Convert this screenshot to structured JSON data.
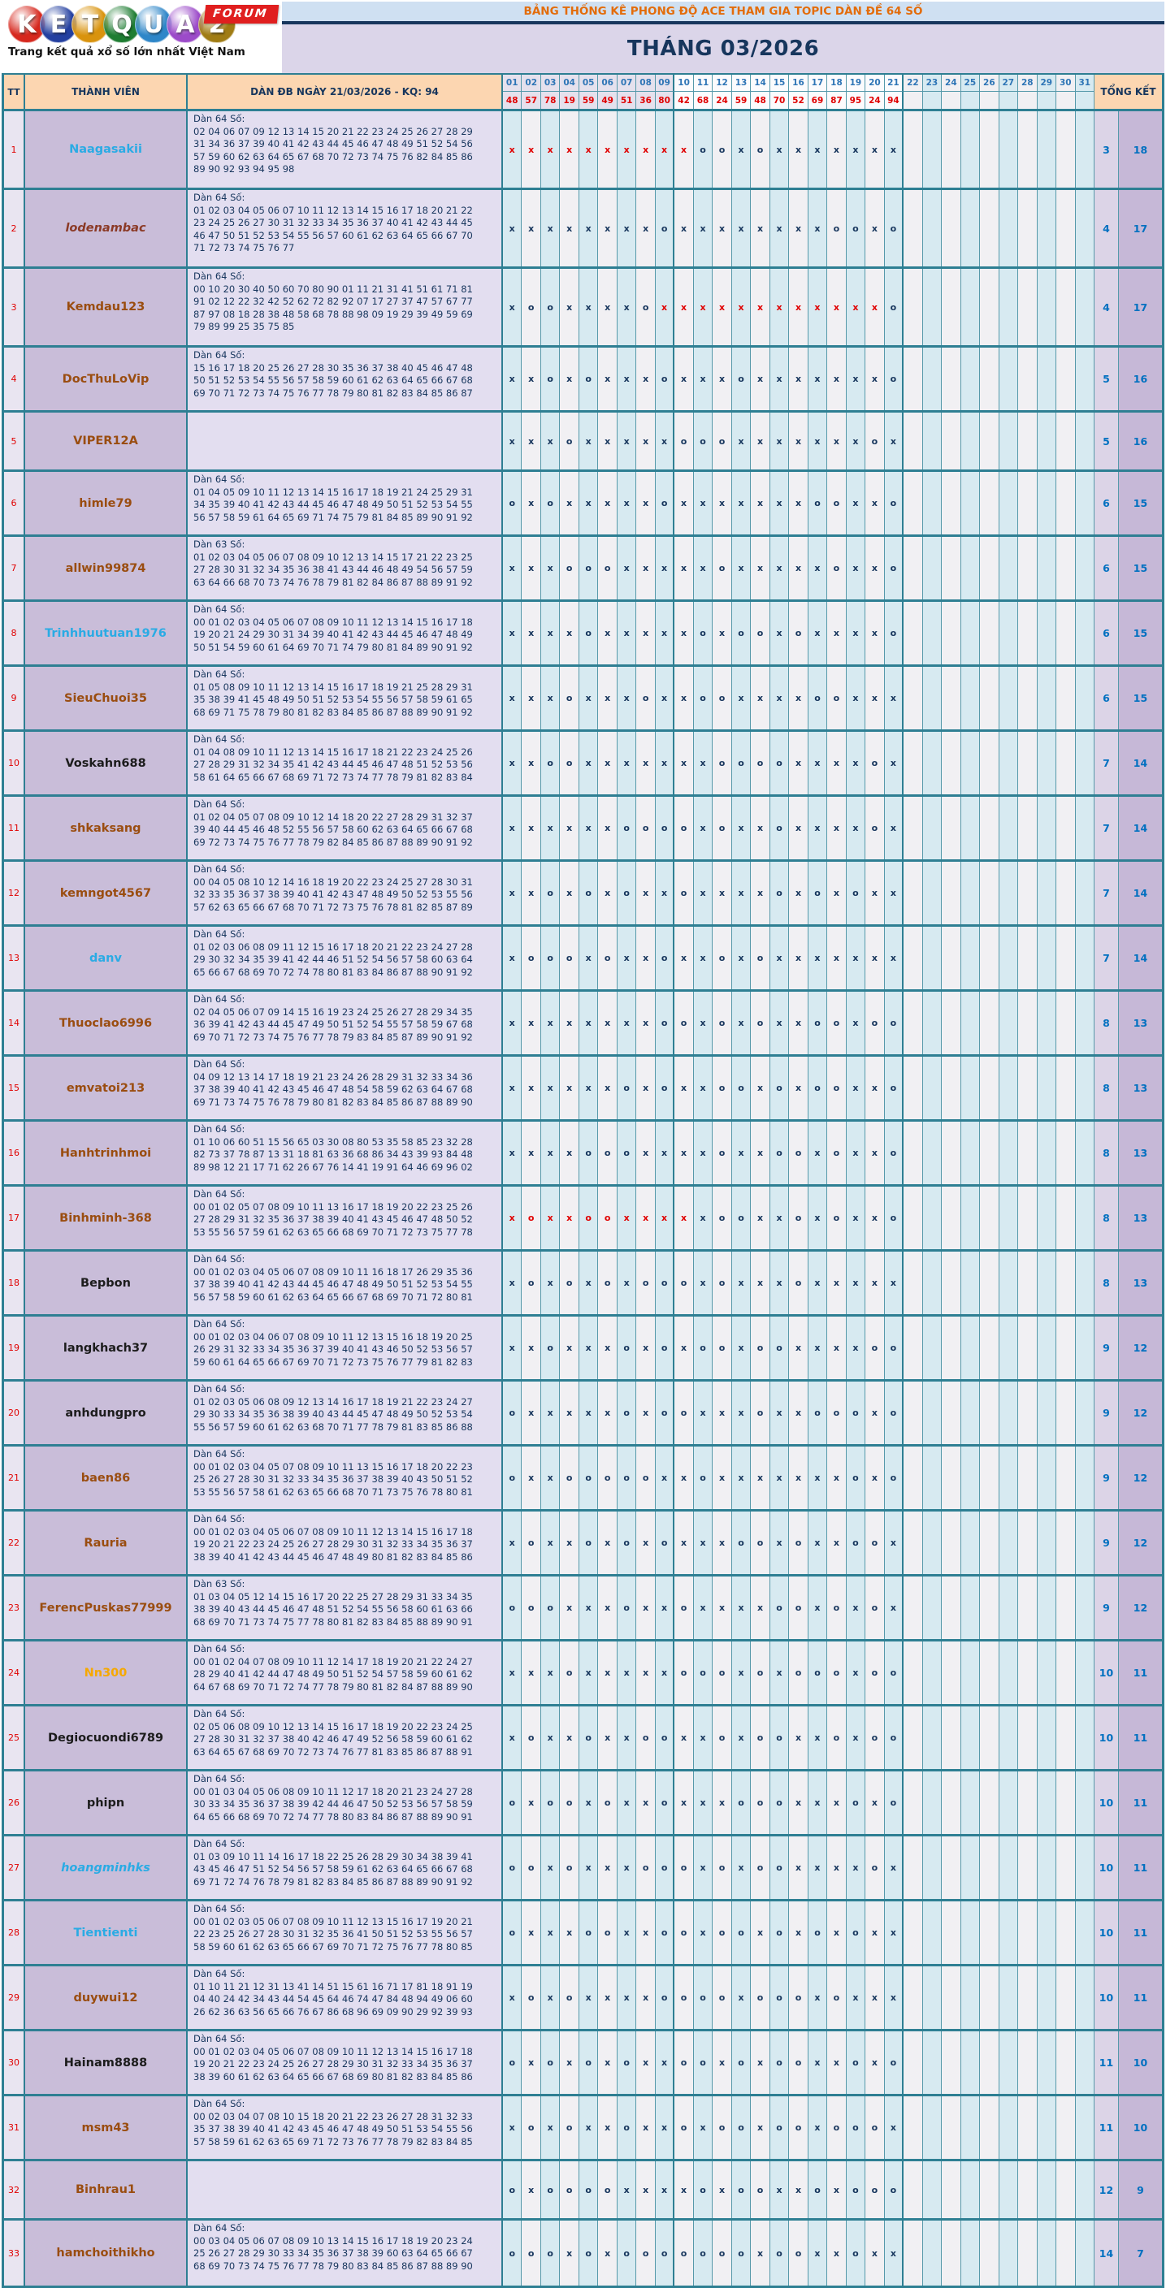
{
  "logo": {
    "letters": [
      {
        "ch": "K",
        "color": "#d6281e"
      },
      {
        "ch": "E",
        "color": "#2440a0"
      },
      {
        "ch": "T",
        "color": "#d9930d"
      },
      {
        "ch": "Q",
        "color": "#1e7d32"
      },
      {
        "ch": "U",
        "color": "#2e86c8"
      },
      {
        "ch": "A",
        "color": "#9c4bc9"
      },
      {
        "ch": "2",
        "color": "#a07c14"
      }
    ],
    "forum_label": "FORUM",
    "tagline": "Trang kết quả xổ số lớn nhất Việt Nam"
  },
  "banner": {
    "title": "BẢNG THỐNG KÊ PHONG ĐỘ ACE THAM GIA TOPIC DÀN ĐỀ 64 SỐ",
    "month": "THÁNG 03/2026"
  },
  "table": {
    "col_tt": "TT",
    "col_member": "THÀNH VIÊN",
    "col_dan": "DÀN ĐB NGÀY 21/03/2026 - KQ: 94",
    "col_total": "TỔNG KẾT",
    "days": [
      "01",
      "02",
      "03",
      "04",
      "05",
      "06",
      "07",
      "08",
      "09",
      "10",
      "11",
      "12",
      "13",
      "14",
      "15",
      "16",
      "17",
      "18",
      "19",
      "20",
      "21",
      "22",
      "23",
      "24",
      "25",
      "26",
      "27",
      "28",
      "29",
      "30",
      "31"
    ],
    "kq": [
      "48",
      "57",
      "78",
      "19",
      "59",
      "49",
      "51",
      "36",
      "80",
      "42",
      "68",
      "24",
      "59",
      "48",
      "70",
      "52",
      "69",
      "87",
      "95",
      "24",
      "94",
      "",
      "",
      "",
      "",
      "",
      "",
      "",
      "",
      "",
      ""
    ],
    "mark_colors": {
      "normal": "#17365d",
      "streak": "#e00000"
    },
    "rows": [
      {
        "tt": "1",
        "name": "Naagasakii",
        "name_color": "#2aabe4",
        "italic": false,
        "dan_label": "Dàn 64 Số:",
        "dan_lines": [
          "02 04 06 07 09 12 13 14 15 20 21 22 23 24 25 26 27 28 29",
          "31 34 36 37 39 40 41 42 43 44 45 46 47 48 49 51 52 54 56",
          "57 59 60 62 63 64 65 67 68 70 72 73 74 75 76 82 84 85 86",
          "89 90 92 93 94 95 98"
        ],
        "marks": "RRRRRRRRRRooxoxxxxxxx",
        "o": "3",
        "x": "18"
      },
      {
        "tt": "2",
        "name": "lodenambac",
        "name_color": "#8b3a26",
        "italic": true,
        "dan_label": "Dàn 64 Số:",
        "dan_lines": [
          "01 02 03 04 05 06 07 10 11 12 13 14 15 16 17 18 20 21 22",
          "23 24 25 26 27 30 31 32 33 34 35 36 37 40 41 42 43 44 45",
          "46 47 50 51 52 53 54 55 56 57 60 61 62 63 64 65 66 67 70",
          "71 72 73 74 75 76 77"
        ],
        "marks": "xxxxxxxxoxxxxxxxxooxo",
        "o": "4",
        "x": "17"
      },
      {
        "tt": "3",
        "name": "Kemdau123",
        "name_color": "#9a4d10",
        "italic": false,
        "dan_label": "Dàn 64 Số:",
        "dan_lines": [
          "00 10 20 30 40 50 60 70 80 90 01 11 21 31 41 51 61 71 81",
          "91 02 12 22 32 42 52 62 72 82 92 07 17 27 37 47 57 67 77",
          "87 97 08 18 28 38 48 58 68 78 88 98 09 19 29 39 49 59 69",
          "79 89 99 25 35 75 85"
        ],
        "marks": "xooxxxxoRRRRRRRRRRRRo",
        "o": "4",
        "x": "17"
      },
      {
        "tt": "4",
        "name": "DocThuLoVip",
        "name_color": "#9a4d10",
        "italic": false,
        "dan_label": "Dàn 64 Số:",
        "dan_lines": [
          "15 16 17 18 20 25 26 27 28 30 35 36 37 38 40 45 46 47 48",
          "50 51 52 53 54 55 56 57 58 59 60 61 62 63 64 65 66 67 68",
          "69 70 71 72 73 74 75 76 77 78 79 80 81 82 83 84 85 86 87"
        ],
        "marks": "xxoxoxxxoxxxoxxxxxxxo",
        "o": "5",
        "x": "16"
      },
      {
        "tt": "5",
        "name": "VIPER12A",
        "name_color": "#9a4d10",
        "italic": false,
        "dan_label": "",
        "dan_lines": [],
        "marks": "xxxoxxxxxoooxxxxxxxox",
        "o": "5",
        "x": "16"
      },
      {
        "tt": "6",
        "name": "himle79",
        "name_color": "#9a4d10",
        "italic": false,
        "dan_label": "Dàn 64 Số:",
        "dan_lines": [
          "01 04 05 09 10 11 12 13 14 15 16 17 18 19 21 24 25 29 31",
          "34 35 39 40 41 42 43 44 45 46 47 48 49 50 51 52 53 54 55",
          "56 57 58 59 61 64 65 69 71 74 75 79 81 84 85 89 90 91 92"
        ],
        "marks": "oxoxxxxxoxxxxxxxooxxo",
        "o": "6",
        "x": "15"
      },
      {
        "tt": "7",
        "name": "allwin99874",
        "name_color": "#9a4d10",
        "italic": false,
        "dan_label": "Dàn 63 Số:",
        "dan_lines": [
          "01 02 03 04 05 06 07 08 09 10 12 13 14 15 17 21 22 23 25",
          "27 28 30 31 32 34 35 36 38 41 43 44 46 48 49 54 56 57 59",
          "63 64 66 68 70 73 74 76 78 79 81 82 84 86 87 88 89 91 92"
        ],
        "marks": "xxxoooxxxxxoxxxxxoxxo",
        "o": "6",
        "x": "15"
      },
      {
        "tt": "8",
        "name": "Trinhhuutuan1976",
        "name_color": "#2aabe4",
        "italic": false,
        "dan_label": "Dàn 64 Số:",
        "dan_lines": [
          "00 01 02 03 04 05 06 07 08 09 10 11 12 13 14 15 16 17 18",
          "19 20 21 24 29 30 31 34 39 40 41 42 43 44 45 46 47 48 49",
          "50 51 54 59 60 61 64 69 70 71 74 79 80 81 84 89 90 91 92"
        ],
        "marks": "xxxxoxxxxxoxooxoxxxxo",
        "o": "6",
        "x": "15"
      },
      {
        "tt": "9",
        "name": "SieuChuoi35",
        "name_color": "#9a4d10",
        "italic": false,
        "dan_label": "Dàn 64 Số:",
        "dan_lines": [
          "01 05 08 09 10 11 12 13 14 15 16 17 18 19 21 25 28 29 31",
          "35 38 39 41 45 48 49 50 51 52 53 54 55 56 57 58 59 61 65",
          "68 69 71 75 78 79 80 81 82 83 84 85 86 87 88 89 90 91 92"
        ],
        "marks": "xxxoxxxoxxooxxxxooxxx",
        "o": "6",
        "x": "15"
      },
      {
        "tt": "10",
        "name": "Voskahn688",
        "name_color": "#1c1c1c",
        "italic": false,
        "dan_label": "Dàn 64 Số:",
        "dan_lines": [
          "01 04 08 09 10 11 12 13 14 15 16 17 18 21 22 23 24 25 26",
          "27 28 29 31 32 34 35 41 42 43 44 45 46 47 48 51 52 53 56",
          "58 61 64 65 66 67 68 69 71 72 73 74 77 78 79 81 82 83 84"
        ],
        "marks": "xxooxxxxxxxooooxxxxox",
        "o": "7",
        "x": "14"
      },
      {
        "tt": "11",
        "name": "shkaksang",
        "name_color": "#9a4d10",
        "italic": false,
        "dan_label": "Dàn 64 Số:",
        "dan_lines": [
          "01 02 04 05 07 08 09 10 12 14 18 20 22 27 28 29 31 32 37",
          "39 40 44 45 46 48 52 55 56 57 58 60 62 63 64 65 66 67 68",
          "69 72 73 74 75 76 77 78 79 82 84 85 86 87 88 89 90 91 92"
        ],
        "marks": "xxxxxxooooxoxxoxxxxox",
        "o": "7",
        "x": "14"
      },
      {
        "tt": "12",
        "name": "kemngot4567",
        "name_color": "#9a4d10",
        "italic": false,
        "dan_label": "Dàn 64 Số:",
        "dan_lines": [
          "00 04 05 08 10 12 14 16 18 19 20 22 23 24 25 27 28 30 31",
          "32 33 35 36 37 38 39 40 41 42 43 47 48 49 50 52 53 55 56",
          "57 62 63 65 66 67 68 70 71 72 73 75 76 78 81 82 85 87 89"
        ],
        "marks": "xxoxoxoxxoxxxxoxoxoxx",
        "o": "7",
        "x": "14"
      },
      {
        "tt": "13",
        "name": "danv",
        "name_color": "#2aabe4",
        "italic": false,
        "dan_label": "Dàn 64 Số:",
        "dan_lines": [
          "01 02 03 06 08 09 11 12 15 16 17 18 20 21 22 23 24 27 28",
          "29 30 32 34 35 39 41 42 44 46 51 52 54 56 57 58 60 63 64",
          "65 66 67 68 69 70 72 74 78 80 81 83 84 86 87 88 90 91 92"
        ],
        "marks": "xoooxoxxoxxoxoxxxxxxx",
        "o": "7",
        "x": "14"
      },
      {
        "tt": "14",
        "name": "Thuoclao6996",
        "name_color": "#9a4d10",
        "italic": false,
        "dan_label": "Dàn 64 Số:",
        "dan_lines": [
          "02 04 05 06 07 09 14 15 16 19 23 24 25 26 27 28 29 34 35",
          "36 39 41 42 43 44 45 47 49 50 51 52 54 55 57 58 59 67 68",
          "69 70 71 72 73 74 75 76 77 78 79 83 84 85 87 89 90 91 92"
        ],
        "marks": "xxxxxxxxooxoxoxxooxoo",
        "o": "8",
        "x": "13"
      },
      {
        "tt": "15",
        "name": "emvatoi213",
        "name_color": "#9a4d10",
        "italic": false,
        "dan_label": "Dàn 64 Số:",
        "dan_lines": [
          "04 09 12 13 14 17 18 19 21 23 24 26 28 29 31 32 33 34 36",
          "37 38 39 40 41 42 43 45 46 47 48 54 58 59 62 63 64 67 68",
          "69 71 73 74 75 76 78 79 80 81 82 83 84 85 86 87 88 89 90"
        ],
        "marks": "xxxxxxoxoxxooxoxooxxo",
        "o": "8",
        "x": "13"
      },
      {
        "tt": "16",
        "name": "Hanhtrinhmoi",
        "name_color": "#9a4d10",
        "italic": false,
        "dan_label": "Dàn 64 Số:",
        "dan_lines": [
          "01 10 06 60 51 15 56 65 03 30 08 80 53 35 58 85 23 32 28",
          "82 73 37 78 87 13 31 18 81 63 36 68 86 34 43 39 93 84 48",
          "89 98 12 21 17 71 62 26 67 76 14 41 19 91 64 46 69 96 02"
        ],
        "marks": "xxxxoooxxxxoxxooxoxxo",
        "o": "8",
        "x": "13"
      },
      {
        "tt": "17",
        "name": "Binhminh-368",
        "name_color": "#9a4d10",
        "italic": false,
        "dan_label": "Dàn 64 Số:",
        "dan_lines": [
          "00 01 02 05 07 08 09 10 11 13 16 17 18 19 20 22 23 25 26",
          "27 28 29 31 32 35 36 37 38 39 40 41 43 45 46 47 48 50 52",
          "53 55 56 57 59 61 62 63 65 66 68 69 70 71 72 73 75 77 78"
        ],
        "marks": "RrRRrrRRRRxooxxoxoxxo",
        "o": "8",
        "x": "13"
      },
      {
        "tt": "18",
        "name": "Bepbon",
        "name_color": "#1c1c1c",
        "italic": false,
        "dan_label": "Dàn 64 Số:",
        "dan_lines": [
          "00 01 02 03 04 05 06 07 08 09 10 11 16 18 17 26 29 35 36",
          "37 38 39 40 41 42 43 44 45 46 47 48 49 50 51 52 53 54 55",
          "56 57 58 59 60 61 62 63 64 65 66 67 68 69 70 71 72 80 81"
        ],
        "marks": "xoxoxoxoooxoxxxoxxxxx",
        "o": "8",
        "x": "13"
      },
      {
        "tt": "19",
        "name": "langkhach37",
        "name_color": "#1c1c1c",
        "italic": false,
        "dan_label": "Dàn 64 Số:",
        "dan_lines": [
          "00 01 02 03 04 06 07 08 09 10 11 12 13 15 16 18 19 20 25",
          "26 29 31 32 33 34 35 36 37 39 40 41 43 46 50 52 53 56 57",
          "59 60 61 64 65 66 67 69 70 71 72 73 75 76 77 79 81 82 83"
        ],
        "marks": "xxoxxxoxoxooxooxxxxoo",
        "o": "9",
        "x": "12"
      },
      {
        "tt": "20",
        "name": "anhdungpro",
        "name_color": "#1c1c1c",
        "italic": false,
        "dan_label": "Dàn 64 Số:",
        "dan_lines": [
          "01 02 03 05 06 08 09 12 13 14 16 17 18 19 21 22 23 24 27",
          "29 30 33 34 35 36 38 39 40 43 44 45 47 48 49 50 52 53 54",
          "55 56 57 59 60 61 62 63 68 70 71 77 78 79 81 83 85 86 88"
        ],
        "marks": "oxxxxxoxooxxxoxxoooxo",
        "o": "9",
        "x": "12"
      },
      {
        "tt": "21",
        "name": "baen86",
        "name_color": "#9a4d10",
        "italic": false,
        "dan_label": "Dàn 64 Số:",
        "dan_lines": [
          "00 01 02 03 04 05 07 08 09 10 11 13 15 16 17 18 20 22 23",
          "25 26 27 28 30 31 32 33 34 35 36 37 38 39 40 43 50 51 52",
          "53 55 56 57 58 61 62 63 65 66 68 70 71 73 75 76 78 80 81"
        ],
        "marks": "oxxoooooxxoxxxxxxxoxo",
        "o": "9",
        "x": "12"
      },
      {
        "tt": "22",
        "name": "Rauria",
        "name_color": "#9a4d10",
        "italic": false,
        "dan_label": "Dàn 64 Số:",
        "dan_lines": [
          "00 01 02 03 04 05 06 07 08 09 10 11 12 13 14 15 16 17 18",
          "19 20 21 22 23 24 25 26 27 28 29 30 31 32 33 34 35 36 37",
          "38 39 40 41 42 43 44 45 46 47 48 49 80 81 82 83 84 85 86"
        ],
        "marks": "xoxxoxoxoxxxooxoxxoox",
        "o": "9",
        "x": "12"
      },
      {
        "tt": "23",
        "name": "FerencPuskas77999",
        "name_color": "#9a4d10",
        "italic": false,
        "dan_label": "Dàn 63 Số:",
        "dan_lines": [
          "01 03 04 05 12 14 15 16 17 20 22 25 27 28 29 31 33 34 35",
          "38 39 40 43 44 45 46 47 48 51 52 54 55 56 58 60 61 63 66",
          "68 69 70 71 73 74 75 77 78 80 81 82 83 84 85 88 89 90 91"
        ],
        "marks": "oooxxxoxxoxxxxooxoxox",
        "o": "9",
        "x": "12"
      },
      {
        "tt": "24",
        "name": "Nn300",
        "name_color": "#f6a800",
        "italic": false,
        "dan_label": "Dàn 64 Số:",
        "dan_lines": [
          "00 01 02 04 07 08 09 10 11 12 14 17 18 19 20 21 22 24 27",
          "28 29 40 41 42 44 47 48 49 50 51 52 54 57 58 59 60 61 62",
          "64 67 68 69 70 71 72 74 77 78 79 80 81 82 84 87 88 89 90"
        ],
        "marks": "xxxoxxxxxoooxoxoooxoo",
        "o": "10",
        "x": "11"
      },
      {
        "tt": "25",
        "name": "Degiocuondi6789",
        "name_color": "#1c1c1c",
        "italic": false,
        "dan_label": "Dàn 64 Số:",
        "dan_lines": [
          "02 05 06 08 09 10 12 13 14 15 16 17 18 19 20 22 23 24 25",
          "27 28 30 31 32 37 38 40 42 46 47 49 52 56 58 59 60 61 62",
          "63 64 65 67 68 69 70 72 73 74 76 77 81 83 85 86 87 88 91"
        ],
        "marks": "xoxxoxxooxxoxooxxoxoo",
        "o": "10",
        "x": "11"
      },
      {
        "tt": "26",
        "name": "phipn",
        "name_color": "#1c1c1c",
        "italic": false,
        "dan_label": "Dàn 64 Số:",
        "dan_lines": [
          "00 01 03 04 05 06 08 09 10 11 12 17 18 20 21 23 24 27 28",
          "30 33 34 35 36 37 38 39 42 44 46 47 50 52 53 56 57 58 59",
          "64 65 66 68 69 70 72 74 77 78 80 83 84 86 87 88 89 90 91"
        ],
        "marks": "oxooxoxxoxxxoooxxxoxo",
        "o": "10",
        "x": "11"
      },
      {
        "tt": "27",
        "name": "hoangminhks",
        "name_color": "#2aabe4",
        "italic": true,
        "dan_label": "Dàn 64 Số:",
        "dan_lines": [
          "01 03 09 10 11 14 16 17 18 22 25 26 28 29 30 34 38 39 41",
          "43 45 46 47 51 52 54 56 57 58 59 61 62 63 64 65 66 67 68",
          "69 71 72 74 76 78 79 81 82 83 84 85 86 87 88 89 90 91 92"
        ],
        "marks": "ooxoxxxoooxoxooxxxxox",
        "o": "10",
        "x": "11"
      },
      {
        "tt": "28",
        "name": "Tientienti",
        "name_color": "#2aabe4",
        "italic": false,
        "dan_label": "Dàn 64 Số:",
        "dan_lines": [
          "00 01 02 03 05 06 07 08 09 10 11 12 13 15 16 17 19 20 21",
          "22 23 25 26 27 28 30 31 32 35 36 41 50 51 52 53 55 56 57",
          "58 59 60 61 62 63 65 66 67 69 70 71 72 75 76 77 78 80 85"
        ],
        "marks": "oxxxooxxooxooxoxoxoxx",
        "o": "10",
        "x": "11"
      },
      {
        "tt": "29",
        "name": "duywui12",
        "name_color": "#9a4d10",
        "italic": false,
        "dan_label": "Dàn 64 Số:",
        "dan_lines": [
          "01 10 11 21 12 31 13 41 14 51 15 61 16 71 17 81 18 91 19",
          "04 40 24 42 34 43 44 54 45 64 46 74 47 84 48 94 49 06 60",
          "26 62 36 63 56 65 66 76 67 86 68 96 69 09 90 29 92 39 93"
        ],
        "marks": "xoxoxxxxooooxoooxoxxx",
        "o": "10",
        "x": "11"
      },
      {
        "tt": "30",
        "name": "Hainam8888",
        "name_color": "#1c1c1c",
        "italic": false,
        "dan_label": "Dàn 64 Số:",
        "dan_lines": [
          "00 01 02 03 04 05 06 07 08 09 10 11 12 13 14 15 16 17 18",
          "19 20 21 22 23 24 25 26 27 28 29 30 31 32 33 34 35 36 37",
          "38 39 60 61 62 63 64 65 66 67 68 69 80 81 82 83 84 85 86"
        ],
        "marks": "oxoxoxoxxooxoxooxxoxo",
        "o": "11",
        "x": "10"
      },
      {
        "tt": "31",
        "name": "msm43",
        "name_color": "#9a4d10",
        "italic": false,
        "dan_label": "Dàn 64 Số:",
        "dan_lines": [
          "00 02 03 04 07 08 10 15 18 20 21 22 23 26 27 28 31 32 33",
          "35 37 38 39 40 41 42 43 45 46 47 48 49 50 51 53 54 55 56",
          "57 58 59 61 62 63 65 69 71 72 73 76 77 78 79 82 83 84 85"
        ],
        "marks": "xoxoxxoxxoxooxooxooox",
        "o": "11",
        "x": "10"
      },
      {
        "tt": "32",
        "name": "Binhrau1",
        "name_color": "#9a4d10",
        "italic": false,
        "dan_label": "",
        "dan_lines": [],
        "marks": "oxooooxxxxoxooxxoxooo",
        "o": "12",
        "x": "9"
      },
      {
        "tt": "33",
        "name": "hamchoithikho",
        "name_color": "#9a4d10",
        "italic": false,
        "dan_label": "Dàn 64 Số:",
        "dan_lines": [
          "00 03 04 05 06 07 08 09 10 13 14 15 16 17 18 19 20 23 24",
          "25 26 27 28 29 30 33 34 35 36 37 38 39 60 63 64 65 66 67",
          "68 69 70 73 74 75 76 77 78 79 80 83 84 85 86 87 88 89 90"
        ],
        "marks": "oooxoxoooooooxooxxoxx",
        "o": "14",
        "x": "7"
      }
    ]
  }
}
